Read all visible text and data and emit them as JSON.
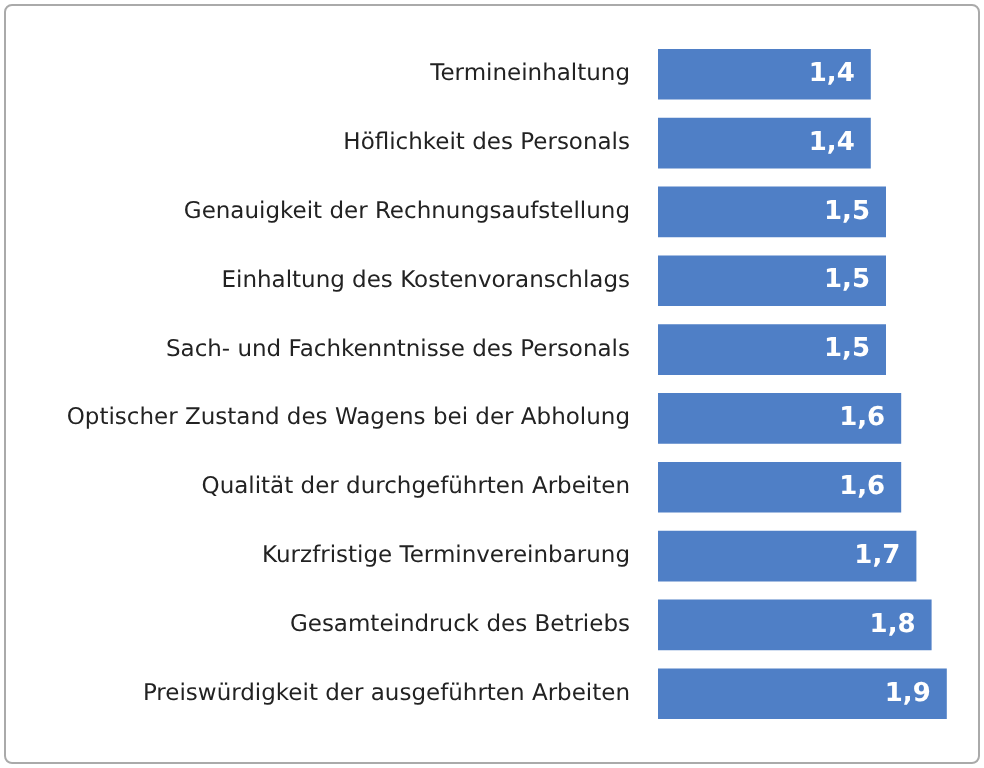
{
  "chart_data": {
    "type": "bar",
    "orientation": "horizontal",
    "categories": [
      "Termineinhaltung",
      "Höflichkeit des Personals",
      "Genauigkeit der Rechnungsaufstellung",
      "Einhaltung des Kostenvoranschlags",
      "Sach- und Fachkenntnisse des Personals",
      "Optischer Zustand des Wagens bei der Abholung",
      "Qualität der durchgeführten Arbeiten",
      "Kurzfristige Terminvereinbarung",
      "Gesamteindruck des Betriebs",
      "Preiswürdigkeit der ausgeführten Arbeiten"
    ],
    "values": [
      1.4,
      1.4,
      1.5,
      1.5,
      1.5,
      1.6,
      1.6,
      1.7,
      1.8,
      1.9
    ],
    "value_labels": [
      "1,4",
      "1,4",
      "1,5",
      "1,5",
      "1,5",
      "1,6",
      "1,6",
      "1,7",
      "1,8",
      "1,9"
    ],
    "color": "#4f7fc6"
  }
}
